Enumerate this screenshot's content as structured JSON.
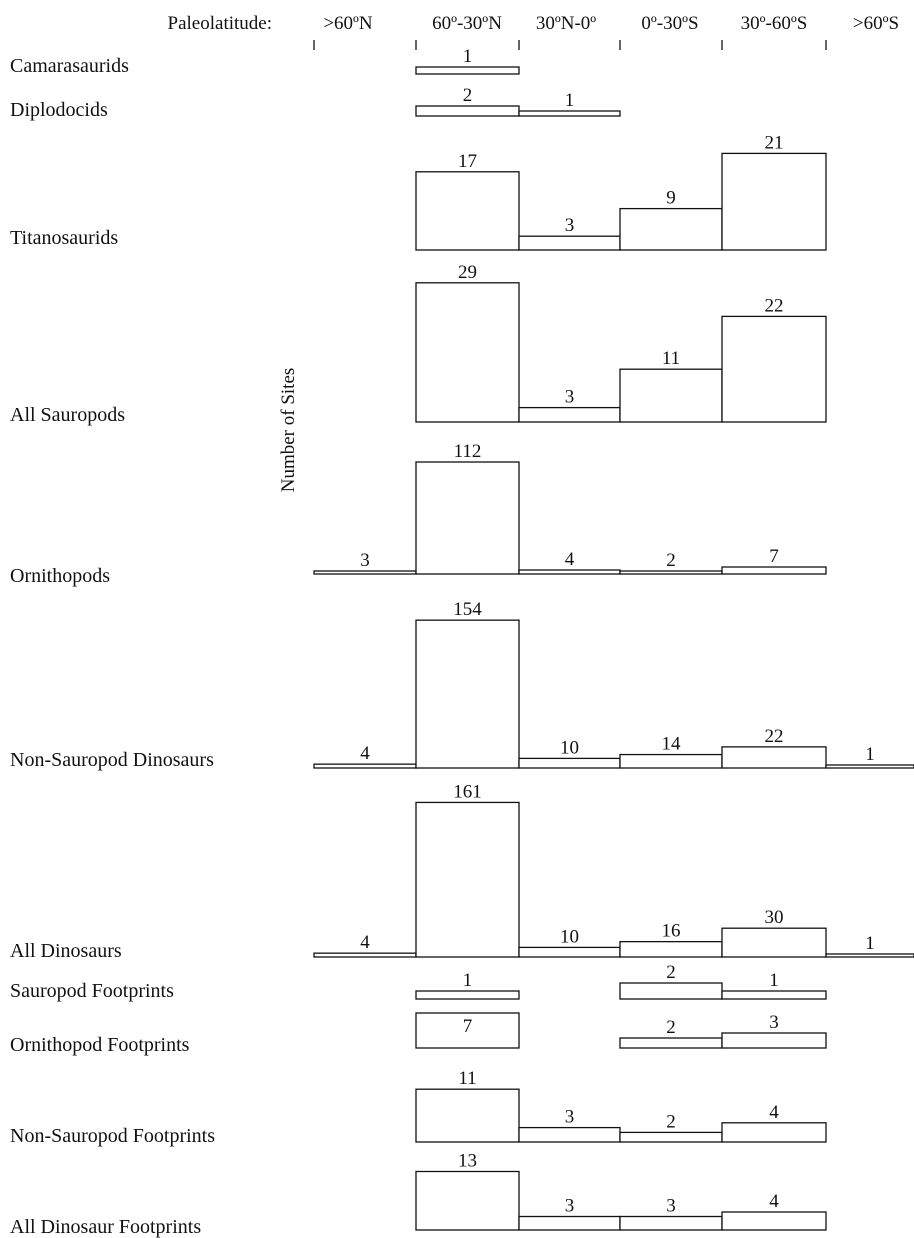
{
  "chart_data": {
    "type": "bar",
    "xlabel": "Paleolatitude:",
    "ylabel": "Number of Sites",
    "categories": [
      ">60ºN",
      "60º-30ºN",
      "30ºN-0º",
      "0º-30ºS",
      "30º-60ºS",
      ">60ºS"
    ],
    "panels": [
      {
        "name": "Camarasaurids",
        "values": [
          null,
          1,
          null,
          null,
          null,
          null
        ]
      },
      {
        "name": "Diplodocids",
        "values": [
          null,
          2,
          1,
          null,
          null,
          null
        ]
      },
      {
        "name": "Titanosaurids",
        "values": [
          null,
          17,
          3,
          9,
          21,
          null
        ]
      },
      {
        "name": "All Sauropods",
        "values": [
          null,
          29,
          3,
          11,
          22,
          null
        ]
      },
      {
        "name": "Ornithopods",
        "values": [
          3,
          112,
          4,
          2,
          7,
          null
        ]
      },
      {
        "name": "Non-Sauropod Dinosaurs",
        "values": [
          4,
          154,
          10,
          14,
          22,
          1
        ]
      },
      {
        "name": "All Dinosaurs",
        "values": [
          4,
          161,
          10,
          16,
          30,
          1
        ]
      },
      {
        "name": "Sauropod Footprints",
        "values": [
          null,
          1,
          null,
          2,
          1,
          null
        ]
      },
      {
        "name": "Ornithopod Footprints",
        "values": [
          null,
          7,
          null,
          2,
          3,
          null
        ]
      },
      {
        "name": "Non-Sauropod Footprints",
        "values": [
          null,
          11,
          3,
          2,
          4,
          null
        ]
      },
      {
        "name": "All Dinosaur Footprints",
        "values": [
          null,
          13,
          3,
          3,
          4,
          null
        ]
      }
    ]
  }
}
